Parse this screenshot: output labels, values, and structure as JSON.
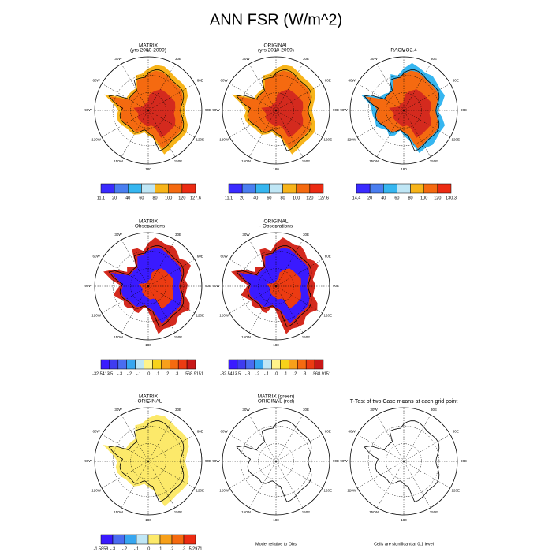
{
  "title": "ANN FSR (W/m^2)",
  "lon_labels": [
    "0",
    "30E",
    "60E",
    "90E",
    "120E",
    "150E",
    "180",
    "150W",
    "120W",
    "90W",
    "60W",
    "30W"
  ],
  "panels": [
    {
      "title": [
        "MATRIX",
        "(yrs 2080-2099)"
      ],
      "colorbar": {
        "labels": [
          "11.1",
          "20",
          "40",
          "60",
          "80",
          "100",
          "120",
          "127.6"
        ],
        "colors": [
          "#3a2bff",
          "#4a7ef0",
          "#36b6f0",
          "#bfe6f5",
          "#f7b41a",
          "#f56a10",
          "#ec2b12"
        ]
      }
    },
    {
      "title": [
        "ORIGINAL",
        "(yrs 2080-2099)"
      ],
      "colorbar": {
        "labels": [
          "11.1",
          "20",
          "40",
          "60",
          "80",
          "100",
          "120",
          "127.6"
        ],
        "colors": [
          "#3a2bff",
          "#4a7ef0",
          "#36b6f0",
          "#bfe6f5",
          "#f7b41a",
          "#f56a10",
          "#ec2b12"
        ]
      }
    },
    {
      "title": [
        "RACMO2.4"
      ],
      "colorbar": {
        "labels": [
          "14.4",
          "20",
          "40",
          "60",
          "80",
          "100",
          "120",
          "130.3"
        ],
        "colors": [
          "#3a2bff",
          "#4a7ef0",
          "#36b6f0",
          "#bfe6f5",
          "#f7b41a",
          "#f56a10",
          "#ec2b12"
        ]
      }
    },
    {
      "title": [
        "MATRIX",
        "- Observations"
      ],
      "colorbar": {
        "labels": [
          "-32.5413",
          "-.5",
          "-.3",
          "-.2",
          "-.1",
          ".0",
          ".1",
          ".2",
          ".3",
          ".5",
          "68.9151"
        ],
        "colors": [
          "#3a1aff",
          "#3f3cf0",
          "#4a6cf0",
          "#36a6f0",
          "#bfe6f5",
          "#fff38a",
          "#f7d21a",
          "#f7a01a",
          "#f56a10",
          "#ec3b12",
          "#c81818"
        ]
      }
    },
    {
      "title": [
        "ORIGINAL",
        "- Observations"
      ],
      "colorbar": {
        "labels": [
          "-32.5413",
          "-.5",
          "-.3",
          "-.2",
          "-.1",
          ".0",
          ".1",
          ".2",
          ".3",
          ".5",
          "68.9151"
        ],
        "colors": [
          "#3a1aff",
          "#3f3cf0",
          "#4a6cf0",
          "#36a6f0",
          "#bfe6f5",
          "#fff38a",
          "#f7d21a",
          "#f7a01a",
          "#f56a10",
          "#ec3b12",
          "#c81818"
        ]
      }
    },
    {
      "title": [
        "MATRIX",
        "- ORIGINAL"
      ],
      "colorbar": {
        "labels": [
          "-1.5858",
          "-.3",
          "-.2",
          "-.1",
          ".0",
          ".1",
          ".2",
          ".3",
          "5.2971"
        ],
        "colors": [
          "#3a1aff",
          "#4a6cf0",
          "#36a6f0",
          "#bfe6f5",
          "#fce96a",
          "#f7a01a",
          "#f56a10",
          "#ec2b12"
        ]
      }
    },
    {
      "title": [
        "MATRIX (green)",
        "ORIGINAL (red)"
      ],
      "footer": "Model relative to Obs"
    },
    {
      "title": [
        "T-Test of two Case means at each grid point"
      ],
      "footer": "Cells are significant at 0.1 level"
    }
  ]
}
